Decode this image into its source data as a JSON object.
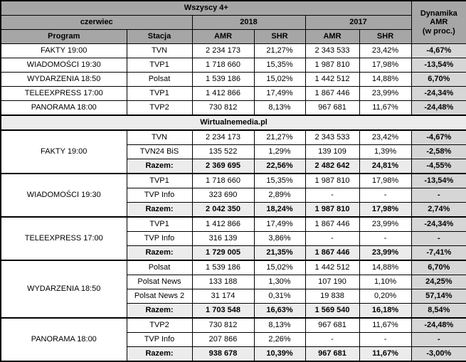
{
  "colors": {
    "header_bg": "#a6a6a6",
    "total_row_bg": "#ececec",
    "dynamics_col_bg": "#d6d6d6",
    "border": "#000000",
    "row_bg": "#ffffff"
  },
  "chart_data": {
    "type": "table",
    "header": {
      "audience": "Wszyscy 4+",
      "month": "czerwiec",
      "year_2018": "2018",
      "year_2017": "2017",
      "dynamics": "Dynamika\nAMR\n(w proc.)",
      "program": "Program",
      "station": "Stacja",
      "amr": "AMR",
      "shr": "SHR"
    },
    "summary_rows": [
      {
        "program": "FAKTY 19:00",
        "station": "TVN",
        "amr_2018": "2 234 173",
        "shr_2018": "21,27%",
        "amr_2017": "2 343 533",
        "shr_2017": "23,42%",
        "dynamics": "-4,67%"
      },
      {
        "program": "WIADOMOŚCI 19:30",
        "station": "TVP1",
        "amr_2018": "1 718 660",
        "shr_2018": "15,35%",
        "amr_2017": "1 987 810",
        "shr_2017": "17,98%",
        "dynamics": "-13,54%"
      },
      {
        "program": "WYDARZENIA 18:50",
        "station": "Polsat",
        "amr_2018": "1 539 186",
        "shr_2018": "15,02%",
        "amr_2017": "1 442 512",
        "shr_2017": "14,88%",
        "dynamics": "6,70%"
      },
      {
        "program": "TELEEXPRESS 17:00",
        "station": "TVP1",
        "amr_2018": "1 412 866",
        "shr_2018": "17,49%",
        "amr_2017": "1 867 446",
        "shr_2017": "23,99%",
        "dynamics": "-24,34%"
      },
      {
        "program": "PANORAMA 18:00",
        "station": "TVP2",
        "amr_2018": "730 812",
        "shr_2018": "8,13%",
        "amr_2017": "967 681",
        "shr_2017": "11,67%",
        "dynamics": "-24,48%"
      }
    ],
    "separator_label": "Wirtualnemedia.pl",
    "detail_groups": [
      {
        "program": "FAKTY 19:00",
        "rows": [
          {
            "station": "TVN",
            "amr_2018": "2 234 173",
            "shr_2018": "21,27%",
            "amr_2017": "2 343 533",
            "shr_2017": "23,42%",
            "dynamics": "-4,67%",
            "total": false
          },
          {
            "station": "TVN24 BiS",
            "amr_2018": "135 522",
            "shr_2018": "1,29%",
            "amr_2017": "139 109",
            "shr_2017": "1,39%",
            "dynamics": "-2,58%",
            "total": false
          },
          {
            "station": "Razem:",
            "amr_2018": "2 369 695",
            "shr_2018": "22,56%",
            "amr_2017": "2 482 642",
            "shr_2017": "24,81%",
            "dynamics": "-4,55%",
            "total": true
          }
        ]
      },
      {
        "program": "WIADOMOŚCI 19:30",
        "rows": [
          {
            "station": "TVP1",
            "amr_2018": "1 718 660",
            "shr_2018": "15,35%",
            "amr_2017": "1 987 810",
            "shr_2017": "17,98%",
            "dynamics": "-13,54%",
            "total": false
          },
          {
            "station": "TVP Info",
            "amr_2018": "323 690",
            "shr_2018": "2,89%",
            "amr_2017": "-",
            "shr_2017": "-",
            "dynamics": "-",
            "total": false
          },
          {
            "station": "Razem:",
            "amr_2018": "2 042 350",
            "shr_2018": "18,24%",
            "amr_2017": "1 987 810",
            "shr_2017": "17,98%",
            "dynamics": "2,74%",
            "total": true
          }
        ]
      },
      {
        "program": "TELEEXPRESS 17:00",
        "rows": [
          {
            "station": "TVP1",
            "amr_2018": "1 412 866",
            "shr_2018": "17,49%",
            "amr_2017": "1 867 446",
            "shr_2017": "23,99%",
            "dynamics": "-24,34%",
            "total": false
          },
          {
            "station": "TVP Info",
            "amr_2018": "316 139",
            "shr_2018": "3,86%",
            "amr_2017": "-",
            "shr_2017": "-",
            "dynamics": "-",
            "total": false
          },
          {
            "station": "Razem:",
            "amr_2018": "1 729 005",
            "shr_2018": "21,35%",
            "amr_2017": "1 867 446",
            "shr_2017": "23,99%",
            "dynamics": "-7,41%",
            "total": true
          }
        ]
      },
      {
        "program": "WYDARZENIA 18:50",
        "rows": [
          {
            "station": "Polsat",
            "amr_2018": "1 539 186",
            "shr_2018": "15,02%",
            "amr_2017": "1 442 512",
            "shr_2017": "14,88%",
            "dynamics": "6,70%",
            "total": false
          },
          {
            "station": "Polsat News",
            "amr_2018": "133 188",
            "shr_2018": "1,30%",
            "amr_2017": "107 190",
            "shr_2017": "1,10%",
            "dynamics": "24,25%",
            "total": false
          },
          {
            "station": "Polsat News 2",
            "amr_2018": "31 174",
            "shr_2018": "0,31%",
            "amr_2017": "19 838",
            "shr_2017": "0,20%",
            "dynamics": "57,14%",
            "total": false
          },
          {
            "station": "Razem:",
            "amr_2018": "1 703 548",
            "shr_2018": "16,63%",
            "amr_2017": "1 569 540",
            "shr_2017": "16,18%",
            "dynamics": "8,54%",
            "total": true
          }
        ]
      },
      {
        "program": "PANORAMA 18:00",
        "rows": [
          {
            "station": "TVP2",
            "amr_2018": "730 812",
            "shr_2018": "8,13%",
            "amr_2017": "967 681",
            "shr_2017": "11,67%",
            "dynamics": "-24,48%",
            "total": false
          },
          {
            "station": "TVP Info",
            "amr_2018": "207 866",
            "shr_2018": "2,26%",
            "amr_2017": "-",
            "shr_2017": "-",
            "dynamics": "-",
            "total": false
          },
          {
            "station": "Razem:",
            "amr_2018": "938 678",
            "shr_2018": "10,39%",
            "amr_2017": "967 681",
            "shr_2017": "11,67%",
            "dynamics": "-3,00%",
            "total": true
          }
        ]
      }
    ]
  }
}
